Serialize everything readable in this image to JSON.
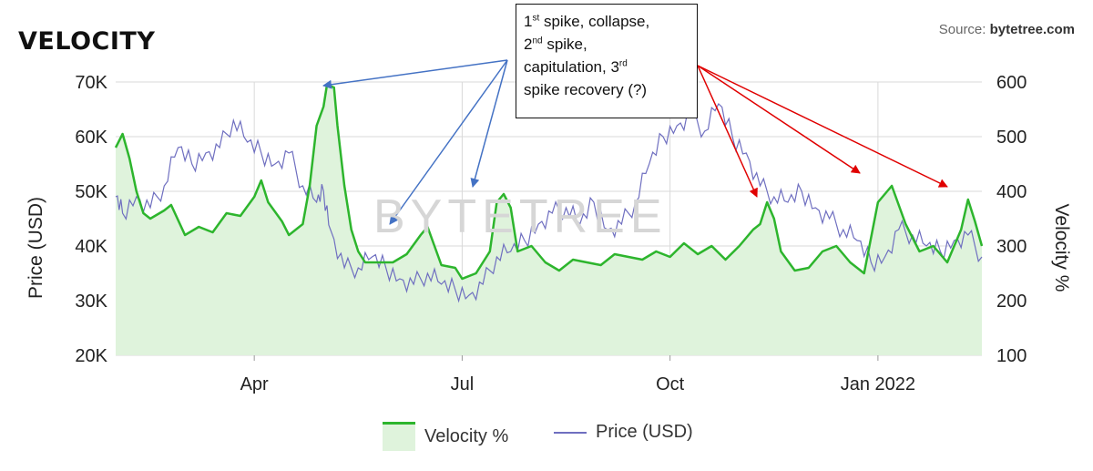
{
  "header": {
    "title": "VELOCITY",
    "source_prefix": "Source: ",
    "source_name": "bytetree.com",
    "watermark": "BYTETREE"
  },
  "annotation": {
    "line1_a": "1",
    "line1_sup": "st",
    "line1_b": " spike, collapse,",
    "line2_a": "2",
    "line2_sup": "nd",
    "line2_b": " spike,",
    "line3_a": "capitulation, 3",
    "line3_sup": "rd",
    "line4": "spike recovery (?)"
  },
  "colors": {
    "velocity_line": "#2db52d",
    "velocity_fill": "#dff3dc",
    "price_line": "#6f6fc0",
    "blue_arrow": "#4472c4",
    "red_arrow": "#e00000",
    "grid": "#d9d9d9"
  },
  "chart_data": {
    "type": "line",
    "x_tick_labels": [
      "Apr",
      "Jul",
      "Oct",
      "Jan 2022"
    ],
    "y_left": {
      "label": "Price (USD)",
      "ticks": [
        "20K",
        "30K",
        "40K",
        "50K",
        "60K",
        "70K"
      ],
      "range": [
        20000,
        70000
      ]
    },
    "y_right": {
      "label": "Velocity %",
      "ticks": [
        "100",
        "200",
        "300",
        "400",
        "500",
        "600"
      ],
      "range": [
        100,
        600
      ]
    },
    "x_range_months": [
      2.0,
      14.5
    ],
    "grid": "on",
    "legend_position": "bottom",
    "series": [
      {
        "name": "Velocity %",
        "axis": "right",
        "style": "area",
        "points": [
          [
            2.0,
            480
          ],
          [
            2.1,
            505
          ],
          [
            2.2,
            460
          ],
          [
            2.3,
            400
          ],
          [
            2.4,
            360
          ],
          [
            2.5,
            350
          ],
          [
            2.7,
            365
          ],
          [
            2.8,
            375
          ],
          [
            3.0,
            320
          ],
          [
            3.2,
            335
          ],
          [
            3.4,
            325
          ],
          [
            3.6,
            360
          ],
          [
            3.8,
            355
          ],
          [
            4.0,
            390
          ],
          [
            4.1,
            420
          ],
          [
            4.2,
            380
          ],
          [
            4.4,
            345
          ],
          [
            4.5,
            320
          ],
          [
            4.7,
            340
          ],
          [
            4.8,
            410
          ],
          [
            4.9,
            520
          ],
          [
            5.0,
            555
          ],
          [
            5.05,
            595
          ],
          [
            5.15,
            590
          ],
          [
            5.2,
            520
          ],
          [
            5.3,
            410
          ],
          [
            5.4,
            330
          ],
          [
            5.5,
            290
          ],
          [
            5.6,
            270
          ],
          [
            5.8,
            270
          ],
          [
            6.0,
            270
          ],
          [
            6.2,
            285
          ],
          [
            6.4,
            320
          ],
          [
            6.5,
            335
          ],
          [
            6.6,
            300
          ],
          [
            6.7,
            265
          ],
          [
            6.9,
            260
          ],
          [
            7.0,
            240
          ],
          [
            7.2,
            250
          ],
          [
            7.4,
            290
          ],
          [
            7.5,
            380
          ],
          [
            7.6,
            395
          ],
          [
            7.7,
            370
          ],
          [
            7.8,
            290
          ],
          [
            8.0,
            300
          ],
          [
            8.2,
            270
          ],
          [
            8.4,
            255
          ],
          [
            8.6,
            275
          ],
          [
            8.8,
            270
          ],
          [
            9.0,
            265
          ],
          [
            9.2,
            285
          ],
          [
            9.4,
            280
          ],
          [
            9.6,
            275
          ],
          [
            9.8,
            290
          ],
          [
            10.0,
            280
          ],
          [
            10.2,
            305
          ],
          [
            10.4,
            285
          ],
          [
            10.6,
            300
          ],
          [
            10.8,
            275
          ],
          [
            11.0,
            300
          ],
          [
            11.2,
            330
          ],
          [
            11.3,
            340
          ],
          [
            11.4,
            380
          ],
          [
            11.5,
            350
          ],
          [
            11.6,
            290
          ],
          [
            11.8,
            255
          ],
          [
            12.0,
            260
          ],
          [
            12.2,
            290
          ],
          [
            12.4,
            300
          ],
          [
            12.6,
            270
          ],
          [
            12.8,
            250
          ],
          [
            13.0,
            380
          ],
          [
            13.2,
            410
          ],
          [
            13.4,
            340
          ],
          [
            13.6,
            290
          ],
          [
            13.8,
            300
          ],
          [
            14.0,
            270
          ],
          [
            14.2,
            330
          ],
          [
            14.3,
            385
          ],
          [
            14.4,
            345
          ],
          [
            14.5,
            300
          ]
        ]
      },
      {
        "name": "Price (USD)",
        "axis": "left",
        "style": "line",
        "points": [
          [
            2.0,
            49000
          ],
          [
            2.1,
            46000
          ],
          [
            2.3,
            49000
          ],
          [
            2.5,
            47000
          ],
          [
            2.7,
            51000
          ],
          [
            2.9,
            58000
          ],
          [
            3.1,
            55000
          ],
          [
            3.3,
            57000
          ],
          [
            3.5,
            58000
          ],
          [
            3.7,
            63000
          ],
          [
            3.9,
            59000
          ],
          [
            4.1,
            57000
          ],
          [
            4.3,
            55000
          ],
          [
            4.5,
            57000
          ],
          [
            4.7,
            51000
          ],
          [
            4.9,
            48000
          ],
          [
            5.0,
            50000
          ],
          [
            5.1,
            43000
          ],
          [
            5.3,
            36000
          ],
          [
            5.5,
            36000
          ],
          [
            5.7,
            38000
          ],
          [
            5.9,
            36000
          ],
          [
            6.1,
            34000
          ],
          [
            6.3,
            33000
          ],
          [
            6.5,
            35000
          ],
          [
            6.7,
            33000
          ],
          [
            6.9,
            32000
          ],
          [
            7.1,
            31000
          ],
          [
            7.3,
            33000
          ],
          [
            7.5,
            38000
          ],
          [
            7.7,
            39000
          ],
          [
            7.9,
            41000
          ],
          [
            8.1,
            44000
          ],
          [
            8.3,
            46000
          ],
          [
            8.5,
            47000
          ],
          [
            8.7,
            44000
          ],
          [
            8.9,
            48000
          ],
          [
            9.1,
            43000
          ],
          [
            9.3,
            44000
          ],
          [
            9.5,
            48000
          ],
          [
            9.7,
            55000
          ],
          [
            9.9,
            60000
          ],
          [
            10.1,
            62000
          ],
          [
            10.3,
            64000
          ],
          [
            10.5,
            61000
          ],
          [
            10.7,
            66000
          ],
          [
            10.9,
            60000
          ],
          [
            11.1,
            57000
          ],
          [
            11.3,
            51000
          ],
          [
            11.5,
            49000
          ],
          [
            11.7,
            48000
          ],
          [
            11.9,
            50000
          ],
          [
            12.1,
            47000
          ],
          [
            12.3,
            45000
          ],
          [
            12.5,
            43000
          ],
          [
            12.7,
            41000
          ],
          [
            12.9,
            37000
          ],
          [
            13.1,
            38000
          ],
          [
            13.3,
            43000
          ],
          [
            13.5,
            42000
          ],
          [
            13.7,
            40000
          ],
          [
            13.9,
            39000
          ],
          [
            14.1,
            41000
          ],
          [
            14.3,
            42000
          ],
          [
            14.5,
            38000
          ]
        ]
      }
    ]
  }
}
